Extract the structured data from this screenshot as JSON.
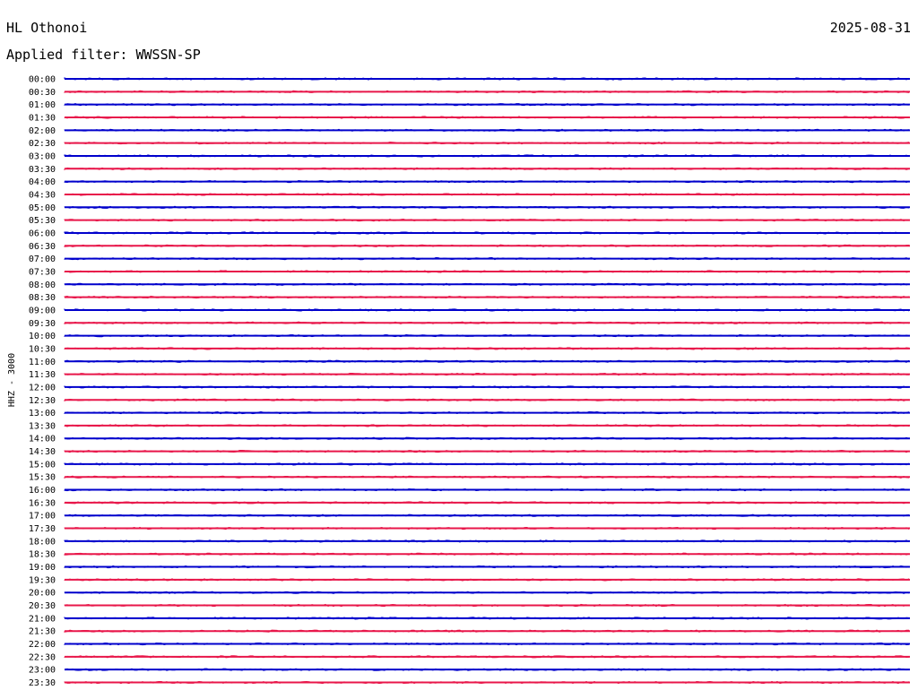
{
  "header": {
    "station": "HL Othonoi",
    "date": "2025-08-31",
    "filter": "Applied filter: WWSSN-SP"
  },
  "chart_data": {
    "type": "line",
    "title": "HL Othonoi",
    "subtitle": "Applied filter: WWSSN-SP",
    "date": "2025-08-31",
    "ylabel": "HHZ - 3000",
    "y_tick_labels": [
      "00:00",
      "00:30",
      "01:00",
      "01:30",
      "02:00",
      "02:30",
      "03:00",
      "03:30",
      "04:00",
      "04:30",
      "05:00",
      "05:30",
      "06:00",
      "06:30",
      "07:00",
      "07:30",
      "08:00",
      "08:30",
      "09:00",
      "09:30",
      "10:00",
      "10:30",
      "11:00",
      "11:30",
      "12:00",
      "12:30",
      "13:00",
      "13:30",
      "14:00",
      "14:30",
      "15:00",
      "15:30",
      "16:00",
      "16:30",
      "17:00",
      "17:30",
      "18:00",
      "18:30",
      "19:00",
      "19:30",
      "20:00",
      "20:30",
      "21:00",
      "21:30",
      "22:00",
      "22:30",
      "23:00",
      "23:30"
    ],
    "trace_colors": [
      "#0000cc",
      "#e8174a"
    ],
    "x_range_minutes": [
      0,
      30
    ],
    "grid": false
  }
}
